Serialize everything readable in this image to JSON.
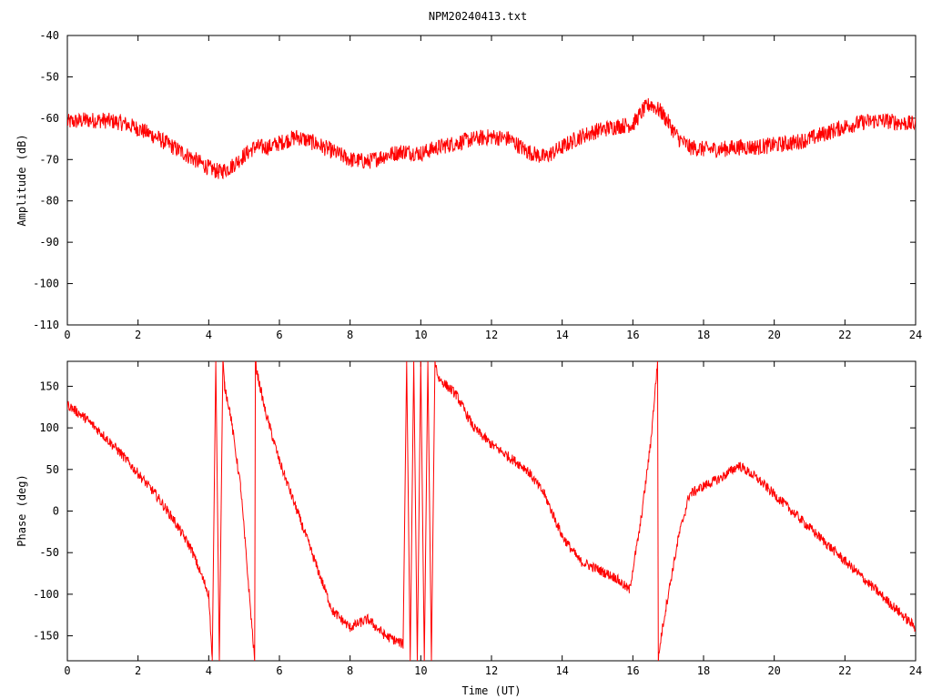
{
  "chart_data": [
    {
      "type": "line",
      "title": "NPM20240413.txt",
      "xlabel": "",
      "ylabel": "Amplitude (dB)",
      "xlim": [
        0,
        24
      ],
      "ylim": [
        -110,
        -40
      ],
      "xticks": [
        "0",
        "2",
        "4",
        "6",
        "8",
        "10",
        "12",
        "14",
        "16",
        "18",
        "20",
        "22",
        "24"
      ],
      "yticks": [
        "-40",
        "-50",
        "-60",
        "-70",
        "-80",
        "-90",
        "-100",
        "-110"
      ],
      "grid": false,
      "line_color": "#ff0000",
      "noise_amplitude": 2.0,
      "series": [
        {
          "x": [
            0,
            0.5,
            1,
            1.5,
            2,
            2.5,
            3,
            3.5,
            4,
            4.3,
            4.6,
            5,
            5.3,
            5.7,
            6,
            6.5,
            7,
            7.5,
            8,
            8.5,
            9,
            9.5,
            10,
            10.5,
            11,
            11.5,
            12,
            12.5,
            13,
            13.5,
            14,
            14.5,
            15,
            15.5,
            16,
            16.3,
            16.5,
            16.8,
            17,
            17.3,
            17.6,
            18,
            18.5,
            19,
            19.5,
            20,
            20.5,
            21,
            21.5,
            22,
            22.5,
            23,
            23.5,
            24
          ],
          "y": [
            -61,
            -60.5,
            -60.5,
            -61,
            -62.5,
            -64.5,
            -67,
            -69.5,
            -72,
            -73,
            -72,
            -69,
            -67,
            -67,
            -66,
            -64.5,
            -66,
            -68,
            -70,
            -70.5,
            -69,
            -68,
            -68.5,
            -67,
            -66,
            -65,
            -64.5,
            -65,
            -68,
            -69.5,
            -67,
            -64.5,
            -63,
            -62,
            -61.5,
            -58,
            -56.5,
            -58.5,
            -61,
            -65,
            -67,
            -67.5,
            -67.5,
            -67,
            -67,
            -66.5,
            -66,
            -65,
            -63.5,
            -62,
            -61,
            -60.5,
            -61,
            -61.5
          ]
        }
      ]
    },
    {
      "type": "line",
      "title": "",
      "xlabel": "Time (UT)",
      "ylabel": "Phase (deg)",
      "xlim": [
        0,
        24
      ],
      "ylim": [
        -180,
        180
      ],
      "xticks": [
        "0",
        "2",
        "4",
        "6",
        "8",
        "10",
        "12",
        "14",
        "16",
        "18",
        "20",
        "22",
        "24"
      ],
      "yticks": [
        "150",
        "100",
        "50",
        "0",
        "-50",
        "-100",
        "-150"
      ],
      "grid": false,
      "line_color": "#ff0000",
      "noise_amplitude": 6,
      "series": [
        {
          "x": [
            0,
            0.5,
            1,
            1.5,
            2,
            2.5,
            3,
            3.5,
            4,
            4.1,
            4.2,
            4.3,
            4.4,
            4.45,
            4.6,
            4.9,
            5.3,
            5.32,
            5.35,
            5.6,
            6,
            6.5,
            7,
            7.5,
            8,
            8.5,
            9,
            9.5,
            9.6,
            9.7,
            9.8,
            9.9,
            10,
            10.1,
            10.2,
            10.3,
            10.4,
            10.5,
            11,
            11.5,
            12,
            12.5,
            13,
            13.5,
            14,
            14.5,
            15,
            15.5,
            15.9,
            16.2,
            16.5,
            16.7,
            16.72,
            16.8,
            17,
            17.3,
            17.6,
            18,
            18.5,
            19,
            19.5,
            20,
            20.5,
            21,
            21.5,
            22,
            22.5,
            23,
            23.5,
            24
          ],
          "y": [
            128,
            112,
            92,
            70,
            45,
            20,
            -10,
            -45,
            -100,
            -180,
            180,
            -180,
            180,
            150,
            120,
            30,
            -180,
            180,
            170,
            120,
            60,
            0,
            -60,
            -120,
            -140,
            -130,
            -150,
            -160,
            180,
            -180,
            180,
            -180,
            180,
            -180,
            180,
            -180,
            180,
            160,
            140,
            100,
            80,
            65,
            50,
            20,
            -30,
            -60,
            -70,
            -80,
            -95,
            -20,
            80,
            180,
            -180,
            -150,
            -100,
            -30,
            20,
            30,
            40,
            55,
            40,
            20,
            0,
            -20,
            -40,
            -60,
            -80,
            -100,
            -120,
            -140
          ]
        }
      ]
    }
  ]
}
